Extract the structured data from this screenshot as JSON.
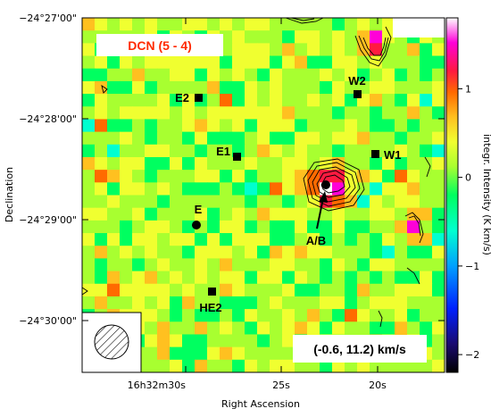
{
  "chart_data": {
    "type": "heatmap",
    "title": "DCN (5 - 4)",
    "xlabel": "Right Ascension",
    "ylabel": "Declination",
    "colorbar_label": "integr. Intensity (K km/s)",
    "colorbar_range": [
      -2.2,
      1.8
    ],
    "colorbar_ticks": [
      {
        "value": 1,
        "label": "1"
      },
      {
        "value": 0,
        "label": "0"
      },
      {
        "value": -1,
        "label": "−1"
      },
      {
        "value": -2,
        "label": "−2"
      }
    ],
    "velocity_range_label": "(-0.6, 11.2) km/s",
    "x_tick_labels": [
      "16h32m30s",
      "25s",
      "20s"
    ],
    "y_tick_labels": [
      "−24°27'00\"",
      "−24°28'00\"",
      "−24°29'00\"",
      "−24°30'00\""
    ],
    "sources": [
      {
        "name": "E2",
        "marker": "square"
      },
      {
        "name": "W2",
        "marker": "square"
      },
      {
        "name": "E1",
        "marker": "square"
      },
      {
        "name": "W1",
        "marker": "square"
      },
      {
        "name": "E",
        "marker": "circle"
      },
      {
        "name": "A/B",
        "marker": "circle"
      },
      {
        "name": "HE2",
        "marker": "square"
      }
    ],
    "peak_source": "A/B",
    "beam_shown": true,
    "colormap": [
      "#000000",
      "#1a0a70",
      "#0020ff",
      "#00a0ff",
      "#00ffd0",
      "#00ff60",
      "#a8ff30",
      "#f0ff30",
      "#ffc020",
      "#ff6a00",
      "#ff1a40",
      "#ff00d8",
      "#ffffff"
    ]
  }
}
